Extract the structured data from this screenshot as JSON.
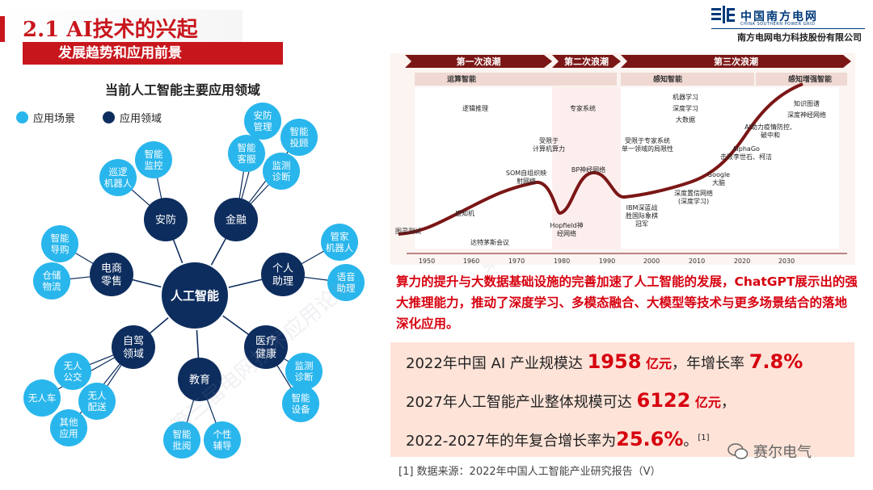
{
  "header": {
    "title": "2.1 AI技术的兴起",
    "subtitle": "发展趋势和应用前景",
    "logo_name": "中国南方电网",
    "logo_en": "CHINA SOUTHERN POWER GRID",
    "company": "南方电网电力科技股份有限公司"
  },
  "diagram": {
    "title": "当前人工智能主要应用领域",
    "legend": [
      {
        "label": "应用场景",
        "color": "#29b6ec"
      },
      {
        "label": "应用领域",
        "color": "#0d2d5e"
      }
    ],
    "center": "人工智能",
    "domains": [
      {
        "label": "安防",
        "scenes": [
          "巡逻\n机器人",
          "智能\n监控"
        ]
      },
      {
        "label": "金融",
        "scenes": [
          "安防\n管理",
          "智能\n投顾",
          "智能\n客服",
          "监测\n诊断"
        ]
      },
      {
        "label": "个人\n助理",
        "scenes": [
          "管家\n机器人",
          "语音\n助理"
        ]
      },
      {
        "label": "医疗\n健康",
        "scenes": [
          "监测\n诊断",
          "智能\n设备"
        ]
      },
      {
        "label": "教育",
        "scenes": [
          "智能\n批阅",
          "个性\n辅导"
        ]
      },
      {
        "label": "自驾\n领域",
        "scenes": [
          "无人\n公交",
          "无人车",
          "无人\n配送",
          "其他\n应用"
        ]
      },
      {
        "label": "电商\n零售",
        "scenes": [
          "智能\n导购",
          "仓储\n物流"
        ]
      }
    ]
  },
  "timeline": {
    "waves": [
      "第一次浪潮",
      "第二次浪潮",
      "第三次浪潮"
    ],
    "phases": [
      "运算智能",
      "感知智能",
      "感知增强智能"
    ],
    "notes": [
      "逻辑推理",
      "专家系统",
      "机器学习",
      "深度学习",
      "大数据",
      "知识图谱",
      "深度神经网络",
      "受限于\n计算机算力",
      "受限于专家系统\n单一领域的局限性"
    ],
    "events": [
      "图灵测试",
      "感知机",
      "达特茅斯会议",
      "SOM自组织映\n射网络",
      "Hopfield神\n经网络",
      "BP神经网络",
      "IBM深蓝战\n胜国际象棋\n冠军",
      "深度置信网络\n(深度学习)",
      "Google\n大脑",
      "AlphaGo\n击败李世石、柯洁",
      "AI助力疫情防控、\n破中和"
    ],
    "years": [
      "1950",
      "1960",
      "1970",
      "1980",
      "1990",
      "2000",
      "2010",
      "2020",
      "2030"
    ]
  },
  "summary": {
    "text": "算力的提升与大数据基础设施的完善加速了人工智能的发展，ChatGPT展示出的强大推理能力，推动了深度学习、多模态融合、大模型等技术与更多场景结合的落地深化应用。"
  },
  "stats": {
    "line1": {
      "pre": "2022年中国 AI 产业规模达 ",
      "value": "1958",
      "unit": " 亿元",
      "mid": "，年增长率 ",
      "rate": "7.8%"
    },
    "line2": {
      "pre": "2027年人工智能产业整体规模可达 ",
      "value": "6122",
      "unit": " 亿元",
      "post": "，"
    },
    "line3": {
      "pre": "2022-2027年的年复合增长率为",
      "value": "25.6%",
      "post": "。",
      "ref": "[1]"
    }
  },
  "source": "[1] 数据来源：2022年中国人工智能产业研究报告（V）",
  "watermark": {
    "brand": "赛尔电气",
    "faint": "第三届电网技术应用论坛"
  }
}
